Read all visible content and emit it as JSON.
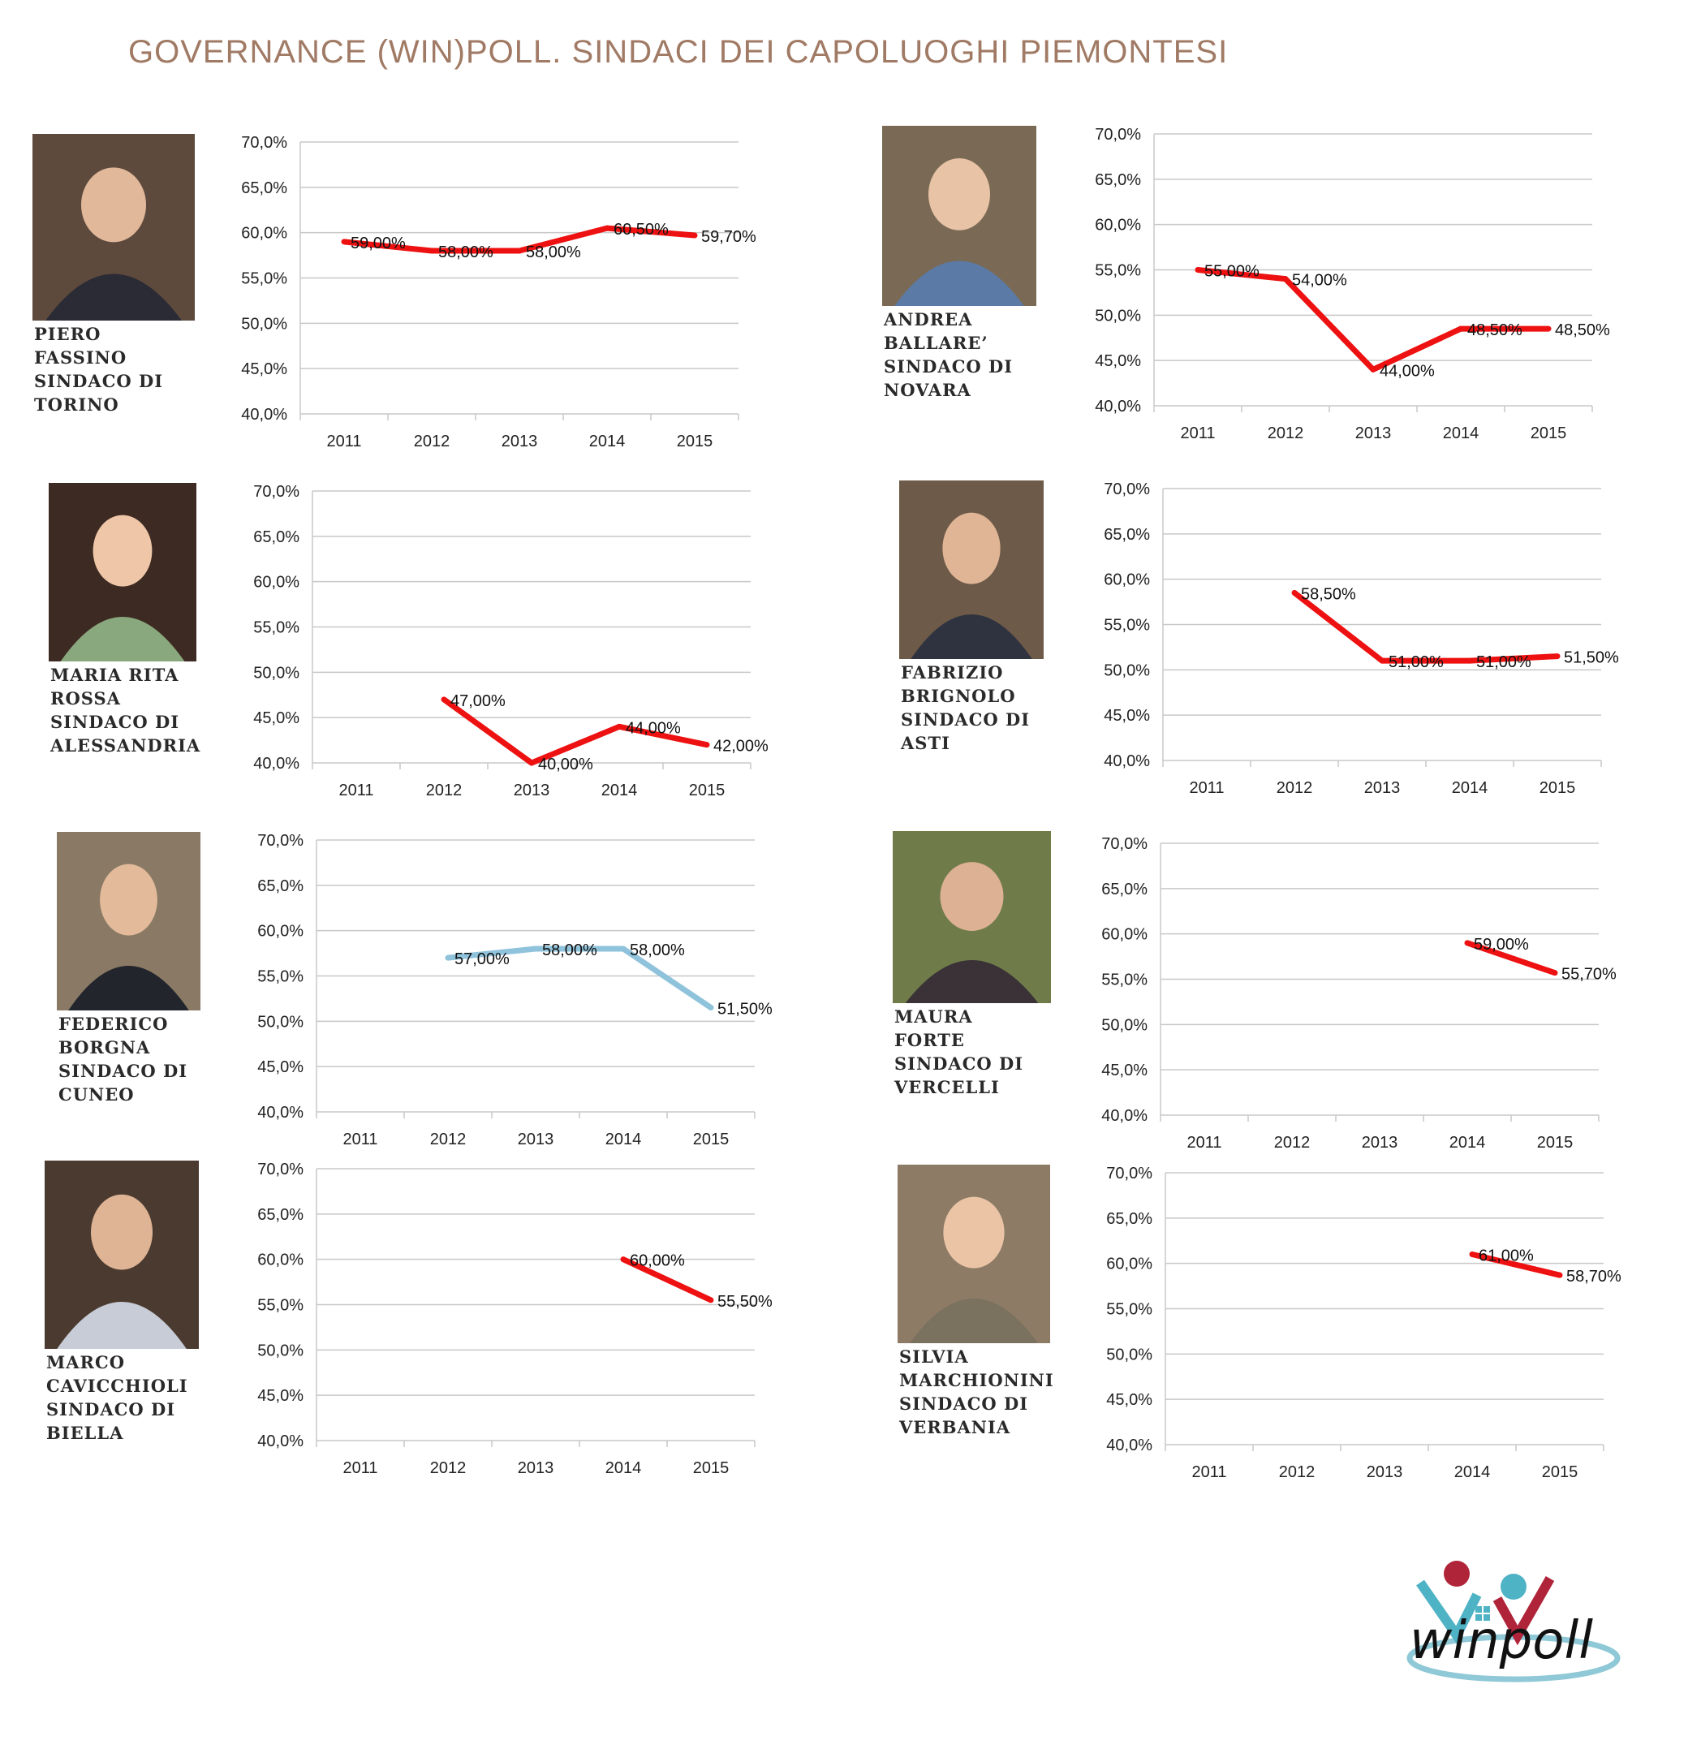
{
  "title": "GOVERNANCE (WIN)POLL. SINDACI DEI CAPOLUOGHI PIEMONTESI",
  "colors": {
    "title": "#a07a64",
    "series_main": "#ee1111",
    "series_alt": "#8fc3dc",
    "grid": "#c8c8c8"
  },
  "logo": {
    "text": "winpoll",
    "icon": "winpoll-logo-icon"
  },
  "chart_data": [
    {
      "type": "line",
      "mayor": [
        "PIERO",
        "FASSINO",
        "SINDACO DI",
        "TORINO"
      ],
      "categories": [
        "2011",
        "2012",
        "2013",
        "2014",
        "2015"
      ],
      "y_ticks": [
        "70,0%",
        "65,0%",
        "60,0%",
        "55,0%",
        "50,0%",
        "45,0%",
        "40,0%"
      ],
      "ylim": [
        40,
        70
      ],
      "series": [
        {
          "values": [
            59.0,
            58.0,
            58.0,
            60.5,
            59.7
          ],
          "labels": [
            "59,00%",
            "58,00%",
            "58,00%",
            "60,50%",
            "59,70%"
          ],
          "color": "#ee1111"
        }
      ]
    },
    {
      "type": "line",
      "mayor": [
        "ANDREA",
        "BALLARE’",
        "SINDACO DI",
        "NOVARA"
      ],
      "categories": [
        "2011",
        "2012",
        "2013",
        "2014",
        "2015"
      ],
      "y_ticks": [
        "70,0%",
        "65,0%",
        "60,0%",
        "55,0%",
        "50,0%",
        "45,0%",
        "40,0%"
      ],
      "ylim": [
        40,
        70
      ],
      "series": [
        {
          "values": [
            55.0,
            54.0,
            44.0,
            48.5,
            48.5
          ],
          "labels": [
            "55,00%",
            "54,00%",
            "44,00%",
            "48,50%",
            "48,50%"
          ],
          "color": "#ee1111"
        }
      ]
    },
    {
      "type": "line",
      "mayor": [
        "MARIA RITA",
        "ROSSA",
        "SINDACO DI",
        "ALESSANDRIA"
      ],
      "categories": [
        "2011",
        "2012",
        "2013",
        "2014",
        "2015"
      ],
      "y_ticks": [
        "70,0%",
        "65,0%",
        "60,0%",
        "55,0%",
        "50,0%",
        "45,0%",
        "40,0%"
      ],
      "ylim": [
        40,
        70
      ],
      "series": [
        {
          "values": [
            null,
            47.0,
            40.0,
            44.0,
            42.0
          ],
          "labels": [
            "",
            "47,00%",
            "40,00%",
            "44,00%",
            "42,00%"
          ],
          "color": "#ee1111"
        }
      ]
    },
    {
      "type": "line",
      "mayor": [
        "FABRIZIO",
        "BRIGNOLO",
        "SINDACO DI",
        "ASTI"
      ],
      "categories": [
        "2011",
        "2012",
        "2013",
        "2014",
        "2015"
      ],
      "y_ticks": [
        "70,0%",
        "65,0%",
        "60,0%",
        "55,0%",
        "50,0%",
        "45,0%",
        "40,0%"
      ],
      "ylim": [
        40,
        70
      ],
      "series": [
        {
          "values": [
            null,
            58.5,
            51.0,
            51.0,
            51.5
          ],
          "labels": [
            "",
            "58,50%",
            "51,00%",
            "51,00%",
            "51,50%"
          ],
          "color": "#ee1111"
        }
      ]
    },
    {
      "type": "line",
      "mayor": [
        "FEDERICO",
        "BORGNA",
        "SINDACO DI",
        "CUNEO"
      ],
      "categories": [
        "2011",
        "2012",
        "2013",
        "2014",
        "2015"
      ],
      "y_ticks": [
        "70,0%",
        "65,0%",
        "60,0%",
        "55,0%",
        "50,0%",
        "45,0%",
        "40,0%"
      ],
      "ylim": [
        40,
        70
      ],
      "series": [
        {
          "values": [
            null,
            57.0,
            58.0,
            58.0,
            51.5
          ],
          "labels": [
            "",
            "57,00%",
            "58,00%",
            "58,00%",
            "51,50%"
          ],
          "color": "#8fc3dc"
        }
      ]
    },
    {
      "type": "line",
      "mayor": [
        "MAURA",
        "FORTE",
        "SINDACO DI",
        "VERCELLI"
      ],
      "categories": [
        "2011",
        "2012",
        "2013",
        "2014",
        "2015"
      ],
      "y_ticks": [
        "70,0%",
        "65,0%",
        "60,0%",
        "55,0%",
        "50,0%",
        "45,0%",
        "40,0%"
      ],
      "ylim": [
        40,
        70
      ],
      "series": [
        {
          "values": [
            null,
            null,
            null,
            59.0,
            55.7
          ],
          "labels": [
            "",
            "",
            "",
            "59,00%",
            "55,70%"
          ],
          "color": "#ee1111"
        }
      ]
    },
    {
      "type": "line",
      "mayor": [
        "MARCO",
        "CAVICCHIOLI",
        "SINDACO DI",
        "BIELLA"
      ],
      "categories": [
        "2011",
        "2012",
        "2013",
        "2014",
        "2015"
      ],
      "y_ticks": [
        "70,0%",
        "65,0%",
        "60,0%",
        "55,0%",
        "50,0%",
        "45,0%",
        "40,0%"
      ],
      "ylim": [
        40,
        70
      ],
      "series": [
        {
          "values": [
            null,
            null,
            null,
            60.0,
            55.5
          ],
          "labels": [
            "",
            "",
            "",
            "60,00%",
            "55,50%"
          ],
          "color": "#ee1111"
        }
      ]
    },
    {
      "type": "line",
      "mayor": [
        "SILVIA",
        "MARCHIONINI",
        "SINDACO DI",
        "VERBANIA"
      ],
      "categories": [
        "2011",
        "2012",
        "2013",
        "2014",
        "2015"
      ],
      "y_ticks": [
        "70,0%",
        "65,0%",
        "60,0%",
        "55,0%",
        "50,0%",
        "45,0%",
        "40,0%"
      ],
      "ylim": [
        40,
        70
      ],
      "series": [
        {
          "values": [
            null,
            null,
            null,
            61.0,
            58.7
          ],
          "labels": [
            "",
            "",
            "",
            "61,00%",
            "58,70%"
          ],
          "color": "#ee1111"
        }
      ]
    }
  ]
}
